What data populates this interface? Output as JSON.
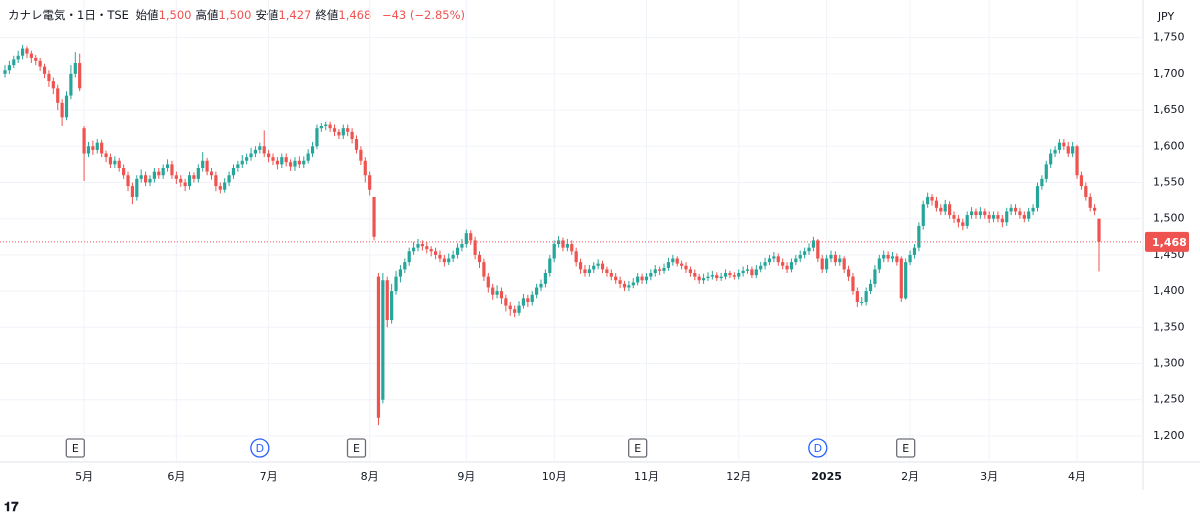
{
  "chart_data": {
    "type": "candlestick",
    "header": {
      "title": "カナレ電気・1日・TSE",
      "fields": [
        {
          "name": "始値",
          "label": "1,500"
        },
        {
          "name": "高値",
          "label": "1,500"
        },
        {
          "name": "安値",
          "label": "1,427"
        },
        {
          "name": "終値",
          "label": "1,468"
        }
      ],
      "change": "−43 (−2.85%)"
    },
    "currency": "JPY",
    "last_price": {
      "value": 1468,
      "label": "1,468"
    },
    "up_color": "#26a69a",
    "down_color": "#ef5350",
    "ylim": [
      1164,
      1802
    ],
    "yticks": [
      {
        "value": 1200,
        "label": "1,200"
      },
      {
        "value": 1250,
        "label": "1,250"
      },
      {
        "value": 1300,
        "label": "1,300"
      },
      {
        "value": 1350,
        "label": "1,350"
      },
      {
        "value": 1400,
        "label": "1,400"
      },
      {
        "value": 1450,
        "label": "1,450"
      },
      {
        "value": 1500,
        "label": "1,500"
      },
      {
        "value": 1550,
        "label": "1,550"
      },
      {
        "value": 1600,
        "label": "1,600"
      },
      {
        "value": 1650,
        "label": "1,650"
      },
      {
        "value": 1700,
        "label": "1,700"
      },
      {
        "value": 1750,
        "label": "1,750"
      }
    ],
    "xticks": [
      {
        "value": 18,
        "label": "5月"
      },
      {
        "value": 39,
        "label": "6月"
      },
      {
        "value": 60,
        "label": "7月"
      },
      {
        "value": 83,
        "label": "8月"
      },
      {
        "value": 105,
        "label": "9月"
      },
      {
        "value": 125,
        "label": "10月"
      },
      {
        "value": 146,
        "label": "11月"
      },
      {
        "value": 167,
        "label": "12月"
      },
      {
        "value": 187,
        "label": "2025"
      },
      {
        "value": 206,
        "label": "2月"
      },
      {
        "value": 224,
        "label": "3月"
      },
      {
        "value": 244,
        "label": "4月"
      }
    ],
    "events": [
      {
        "label": "E",
        "index": 16
      },
      {
        "label": "D",
        "index": 58
      },
      {
        "label": "E",
        "index": 80
      },
      {
        "label": "E",
        "index": 144
      },
      {
        "label": "D",
        "index": 185
      },
      {
        "label": "E",
        "index": 205
      }
    ],
    "open": [
      1700,
      1705,
      1712,
      1720,
      1725,
      1735,
      1728,
      1722,
      1718,
      1710,
      1700,
      1690,
      1680,
      1660,
      1640,
      1670,
      1700,
      1715,
      1625,
      1590,
      1600,
      1595,
      1605,
      1590,
      1585,
      1575,
      1580,
      1570,
      1560,
      1545,
      1530,
      1555,
      1560,
      1550,
      1555,
      1565,
      1560,
      1570,
      1575,
      1560,
      1555,
      1550,
      1545,
      1560,
      1555,
      1570,
      1580,
      1565,
      1560,
      1545,
      1540,
      1550,
      1560,
      1570,
      1575,
      1580,
      1585,
      1590,
      1595,
      1600,
      1590,
      1585,
      1580,
      1575,
      1585,
      1578,
      1572,
      1580,
      1575,
      1580,
      1590,
      1600,
      1625,
      1628,
      1630,
      1625,
      1620,
      1615,
      1625,
      1620,
      1610,
      1595,
      1580,
      1560,
      1530,
      1420,
      1250,
      1415,
      1360,
      1400,
      1420,
      1430,
      1440,
      1455,
      1460,
      1465,
      1462,
      1458,
      1455,
      1450,
      1445,
      1440,
      1445,
      1450,
      1460,
      1465,
      1480,
      1470,
      1450,
      1440,
      1420,
      1405,
      1395,
      1400,
      1390,
      1380,
      1375,
      1370,
      1380,
      1390,
      1385,
      1395,
      1405,
      1410,
      1425,
      1445,
      1465,
      1470,
      1460,
      1465,
      1455,
      1440,
      1430,
      1425,
      1430,
      1435,
      1438,
      1430,
      1425,
      1420,
      1415,
      1410,
      1405,
      1408,
      1412,
      1420,
      1415,
      1420,
      1425,
      1430,
      1428,
      1432,
      1440,
      1445,
      1438,
      1435,
      1430,
      1425,
      1420,
      1415,
      1418,
      1420,
      1422,
      1418,
      1420,
      1425,
      1422,
      1420,
      1425,
      1428,
      1430,
      1422,
      1430,
      1435,
      1440,
      1445,
      1448,
      1440,
      1435,
      1430,
      1440,
      1445,
      1450,
      1455,
      1460,
      1470,
      1445,
      1430,
      1445,
      1450,
      1440,
      1445,
      1430,
      1420,
      1400,
      1385,
      1385,
      1400,
      1410,
      1430,
      1445,
      1450,
      1445,
      1448,
      1445,
      1390,
      1440,
      1450,
      1460,
      1490,
      1520,
      1530,
      1525,
      1515,
      1510,
      1520,
      1505,
      1500,
      1495,
      1490,
      1505,
      1510,
      1505,
      1510,
      1505,
      1500,
      1505,
      1500,
      1495,
      1510,
      1515,
      1510,
      1505,
      1500,
      1510,
      1515,
      1545,
      1555,
      1575,
      1590,
      1595,
      1605,
      1600,
      1590,
      1600,
      1560,
      1545,
      1530,
      1515,
      1500
    ],
    "high": [
      1712,
      1718,
      1725,
      1732,
      1740,
      1738,
      1732,
      1726,
      1722,
      1714,
      1705,
      1695,
      1685,
      1665,
      1676,
      1712,
      1730,
      1728,
      1628,
      1606,
      1608,
      1610,
      1609,
      1594,
      1590,
      1586,
      1584,
      1575,
      1565,
      1550,
      1560,
      1568,
      1565,
      1560,
      1570,
      1570,
      1575,
      1582,
      1580,
      1565,
      1560,
      1555,
      1565,
      1564,
      1575,
      1592,
      1584,
      1570,
      1565,
      1550,
      1556,
      1565,
      1575,
      1580,
      1588,
      1590,
      1598,
      1600,
      1605,
      1622,
      1595,
      1590,
      1585,
      1590,
      1590,
      1582,
      1585,
      1586,
      1586,
      1596,
      1606,
      1630,
      1632,
      1634,
      1634,
      1630,
      1624,
      1630,
      1630,
      1625,
      1615,
      1600,
      1585,
      1565,
      1530,
      1425,
      1425,
      1420,
      1410,
      1428,
      1436,
      1445,
      1460,
      1468,
      1472,
      1470,
      1468,
      1462,
      1460,
      1456,
      1450,
      1452,
      1456,
      1466,
      1472,
      1485,
      1484,
      1475,
      1455,
      1445,
      1425,
      1410,
      1408,
      1405,
      1395,
      1385,
      1380,
      1386,
      1396,
      1395,
      1400,
      1410,
      1416,
      1430,
      1450,
      1470,
      1476,
      1474,
      1472,
      1470,
      1460,
      1445,
      1436,
      1436,
      1440,
      1444,
      1442,
      1434,
      1430,
      1425,
      1420,
      1414,
      1414,
      1418,
      1425,
      1424,
      1425,
      1430,
      1436,
      1434,
      1438,
      1446,
      1450,
      1448,
      1442,
      1440,
      1434,
      1430,
      1424,
      1424,
      1426,
      1428,
      1426,
      1425,
      1430,
      1428,
      1426,
      1430,
      1434,
      1436,
      1434,
      1436,
      1440,
      1446,
      1450,
      1454,
      1452,
      1445,
      1440,
      1445,
      1450,
      1456,
      1460,
      1466,
      1475,
      1472,
      1450,
      1450,
      1456,
      1455,
      1450,
      1448,
      1435,
      1425,
      1405,
      1392,
      1405,
      1416,
      1436,
      1450,
      1456,
      1455,
      1454,
      1452,
      1448,
      1445,
      1456,
      1465,
      1495,
      1525,
      1536,
      1534,
      1530,
      1520,
      1526,
      1524,
      1510,
      1505,
      1500,
      1510,
      1516,
      1514,
      1516,
      1514,
      1510,
      1510,
      1510,
      1505,
      1515,
      1520,
      1520,
      1515,
      1510,
      1515,
      1520,
      1550,
      1560,
      1580,
      1596,
      1600,
      1610,
      1610,
      1606,
      1606,
      1602,
      1565,
      1550,
      1535,
      1520,
      1500
    ],
    "low": [
      1695,
      1700,
      1708,
      1715,
      1720,
      1722,
      1715,
      1712,
      1704,
      1694,
      1682,
      1672,
      1650,
      1628,
      1636,
      1665,
      1695,
      1676,
      1552,
      1585,
      1588,
      1590,
      1585,
      1578,
      1570,
      1570,
      1565,
      1555,
      1538,
      1520,
      1525,
      1550,
      1545,
      1545,
      1550,
      1555,
      1555,
      1565,
      1555,
      1548,
      1544,
      1538,
      1540,
      1550,
      1550,
      1565,
      1560,
      1554,
      1538,
      1535,
      1536,
      1545,
      1555,
      1565,
      1570,
      1575,
      1580,
      1585,
      1590,
      1585,
      1578,
      1574,
      1568,
      1570,
      1572,
      1566,
      1566,
      1570,
      1570,
      1576,
      1585,
      1596,
      1620,
      1622,
      1620,
      1614,
      1610,
      1610,
      1614,
      1604,
      1590,
      1574,
      1550,
      1532,
      1470,
      1215,
      1245,
      1350,
      1355,
      1395,
      1412,
      1425,
      1435,
      1450,
      1455,
      1456,
      1452,
      1448,
      1444,
      1440,
      1434,
      1436,
      1440,
      1445,
      1455,
      1460,
      1464,
      1444,
      1432,
      1414,
      1398,
      1388,
      1390,
      1382,
      1372,
      1366,
      1364,
      1366,
      1376,
      1378,
      1380,
      1390,
      1400,
      1405,
      1420,
      1440,
      1460,
      1455,
      1455,
      1450,
      1434,
      1424,
      1420,
      1420,
      1425,
      1430,
      1425,
      1420,
      1415,
      1410,
      1404,
      1400,
      1400,
      1404,
      1408,
      1410,
      1410,
      1415,
      1420,
      1422,
      1424,
      1428,
      1435,
      1434,
      1430,
      1425,
      1420,
      1415,
      1410,
      1410,
      1414,
      1416,
      1414,
      1414,
      1416,
      1418,
      1416,
      1416,
      1420,
      1424,
      1418,
      1418,
      1426,
      1430,
      1436,
      1440,
      1435,
      1430,
      1425,
      1426,
      1436,
      1440,
      1445,
      1450,
      1455,
      1440,
      1425,
      1425,
      1440,
      1435,
      1435,
      1425,
      1414,
      1395,
      1378,
      1380,
      1380,
      1396,
      1405,
      1425,
      1440,
      1440,
      1440,
      1435,
      1385,
      1388,
      1436,
      1445,
      1455,
      1485,
      1515,
      1518,
      1510,
      1505,
      1505,
      1500,
      1494,
      1488,
      1484,
      1486,
      1500,
      1500,
      1500,
      1500,
      1494,
      1495,
      1495,
      1488,
      1490,
      1505,
      1505,
      1500,
      1495,
      1496,
      1505,
      1510,
      1540,
      1550,
      1570,
      1585,
      1590,
      1595,
      1585,
      1585,
      1555,
      1540,
      1525,
      1510,
      1505,
      1427
    ],
    "close": [
      1705,
      1712,
      1720,
      1725,
      1735,
      1728,
      1722,
      1718,
      1710,
      1700,
      1690,
      1680,
      1660,
      1640,
      1670,
      1700,
      1715,
      1680,
      1590,
      1600,
      1595,
      1605,
      1590,
      1585,
      1575,
      1580,
      1570,
      1560,
      1545,
      1530,
      1555,
      1560,
      1550,
      1555,
      1565,
      1560,
      1570,
      1575,
      1560,
      1555,
      1550,
      1545,
      1560,
      1555,
      1570,
      1580,
      1565,
      1560,
      1545,
      1540,
      1550,
      1560,
      1570,
      1575,
      1580,
      1585,
      1590,
      1595,
      1600,
      1590,
      1585,
      1580,
      1575,
      1585,
      1578,
      1572,
      1580,
      1575,
      1580,
      1590,
      1600,
      1625,
      1628,
      1630,
      1625,
      1620,
      1615,
      1625,
      1620,
      1610,
      1595,
      1580,
      1560,
      1540,
      1475,
      1225,
      1415,
      1360,
      1400,
      1420,
      1430,
      1440,
      1455,
      1460,
      1465,
      1462,
      1458,
      1455,
      1450,
      1445,
      1440,
      1445,
      1450,
      1460,
      1465,
      1480,
      1470,
      1450,
      1440,
      1420,
      1405,
      1395,
      1400,
      1390,
      1380,
      1375,
      1370,
      1380,
      1390,
      1385,
      1395,
      1405,
      1410,
      1425,
      1445,
      1465,
      1470,
      1460,
      1465,
      1455,
      1440,
      1430,
      1425,
      1430,
      1435,
      1438,
      1430,
      1425,
      1420,
      1415,
      1410,
      1405,
      1408,
      1412,
      1420,
      1415,
      1420,
      1425,
      1430,
      1428,
      1432,
      1440,
      1445,
      1438,
      1435,
      1430,
      1425,
      1420,
      1415,
      1418,
      1420,
      1422,
      1418,
      1420,
      1425,
      1422,
      1420,
      1425,
      1428,
      1430,
      1422,
      1430,
      1435,
      1440,
      1445,
      1448,
      1440,
      1435,
      1430,
      1440,
      1445,
      1450,
      1455,
      1460,
      1470,
      1445,
      1430,
      1445,
      1450,
      1440,
      1445,
      1430,
      1420,
      1400,
      1385,
      1385,
      1400,
      1410,
      1430,
      1445,
      1450,
      1445,
      1448,
      1440,
      1390,
      1440,
      1450,
      1460,
      1490,
      1520,
      1530,
      1525,
      1515,
      1510,
      1520,
      1505,
      1500,
      1495,
      1490,
      1505,
      1510,
      1505,
      1510,
      1505,
      1500,
      1505,
      1500,
      1495,
      1510,
      1515,
      1510,
      1505,
      1500,
      1510,
      1515,
      1545,
      1555,
      1575,
      1590,
      1595,
      1605,
      1600,
      1590,
      1600,
      1560,
      1545,
      1530,
      1515,
      1511,
      1468
    ]
  },
  "footer": {
    "brand": "TradingView"
  }
}
